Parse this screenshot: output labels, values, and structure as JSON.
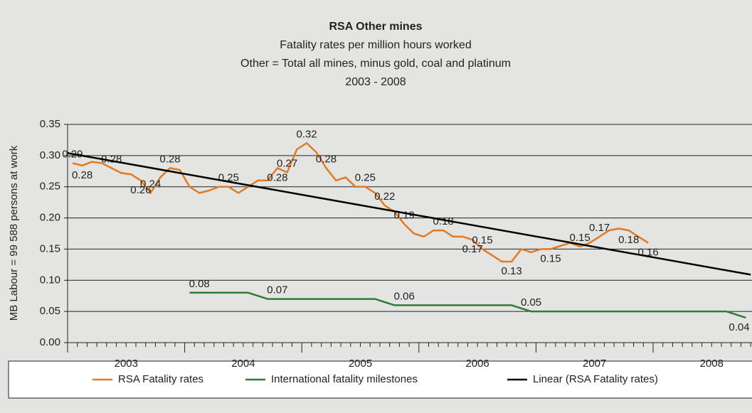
{
  "chart_data": {
    "type": "line",
    "title": "RSA Other mines",
    "subtitle": [
      "Fatality rates per million hours worked",
      "Other = Total all mines, minus gold, coal and platinum",
      "2003 - 2008"
    ],
    "ylabel": "MB Labour = 99 588 persons at work",
    "x_labels": [
      "2003",
      "2004",
      "2005",
      "2006",
      "2007",
      "2008"
    ],
    "ylim": [
      0,
      0.35
    ],
    "yticks": [
      {
        "value": 0,
        "label": "0.00"
      },
      {
        "value": 0.05,
        "label": "0.05"
      },
      {
        "value": 0.1,
        "label": "0.10"
      },
      {
        "value": 0.15,
        "label": "0.15"
      },
      {
        "value": 0.2,
        "label": "0.20"
      },
      {
        "value": 0.25,
        "label": "0.25"
      },
      {
        "value": 0.3,
        "label": "0.30"
      },
      {
        "value": 0.35,
        "label": "0.35"
      }
    ],
    "grid": true,
    "series": [
      {
        "name": "RSA Fatality rates",
        "color": "#e07b24",
        "values": [
          0.288,
          0.284,
          0.29,
          0.288,
          0.28,
          0.272,
          0.27,
          0.26,
          0.24,
          0.265,
          0.28,
          0.277,
          0.25,
          0.24,
          0.244,
          0.25,
          0.25,
          0.24,
          0.25,
          0.26,
          0.26,
          0.28,
          0.273,
          0.31,
          0.32,
          0.305,
          0.28,
          0.26,
          0.265,
          0.25,
          0.25,
          0.24,
          0.22,
          0.21,
          0.19,
          0.175,
          0.17,
          0.18,
          0.18,
          0.17,
          0.17,
          0.165,
          0.15,
          0.14,
          0.13,
          0.13,
          0.15,
          0.145,
          0.15,
          0.15,
          0.155,
          0.16,
          0.154,
          0.16,
          0.17,
          0.18,
          0.183,
          0.18,
          0.17,
          0.16,
          null,
          null,
          null,
          null,
          null,
          null,
          null,
          null,
          null,
          null
        ],
        "value_labels": [
          "0.29",
          "0.28",
          null,
          null,
          "0.28",
          null,
          null,
          "0.26",
          "0.24",
          null,
          "0.28",
          null,
          null,
          null,
          null,
          null,
          "0.25",
          null,
          null,
          null,
          null,
          "0.28",
          "0.27",
          null,
          "0.32",
          null,
          "0.28",
          null,
          null,
          null,
          "0.25",
          null,
          "0.22",
          null,
          "0.19",
          null,
          null,
          null,
          "0.18",
          null,
          null,
          "0.17",
          "0.15",
          null,
          null,
          "0.13",
          null,
          null,
          null,
          "0.15",
          null,
          null,
          "0.15",
          null,
          "0.17",
          null,
          null,
          "0.18",
          null,
          "0.16",
          null,
          null,
          null,
          null,
          null,
          null,
          null,
          null,
          null,
          null
        ]
      },
      {
        "name": "International fatality milestones",
        "color": "#2e7d3a",
        "values": [
          null,
          null,
          null,
          null,
          null,
          null,
          null,
          null,
          null,
          null,
          null,
          null,
          0.08,
          0.08,
          0.08,
          0.08,
          0.08,
          0.08,
          0.08,
          0.075,
          0.07,
          0.07,
          0.07,
          0.07,
          0.07,
          0.07,
          0.07,
          0.07,
          0.07,
          0.07,
          0.07,
          0.07,
          0.065,
          0.06,
          0.06,
          0.06,
          0.06,
          0.06,
          0.06,
          0.06,
          0.06,
          0.06,
          0.06,
          0.06,
          0.06,
          0.06,
          0.055,
          0.05,
          0.05,
          0.05,
          0.05,
          0.05,
          0.05,
          0.05,
          0.05,
          0.05,
          0.05,
          0.05,
          0.05,
          0.05,
          0.05,
          0.05,
          0.05,
          0.05,
          0.05,
          0.05,
          0.05,
          0.05,
          0.045,
          0.04
        ],
        "value_labels": [
          null,
          null,
          null,
          null,
          null,
          null,
          null,
          null,
          null,
          null,
          null,
          null,
          null,
          "0.08",
          null,
          null,
          null,
          null,
          null,
          null,
          null,
          "0.07",
          null,
          null,
          null,
          null,
          null,
          null,
          null,
          null,
          null,
          null,
          null,
          null,
          "0.06",
          null,
          null,
          null,
          null,
          null,
          null,
          null,
          null,
          null,
          null,
          null,
          null,
          "0.05",
          null,
          null,
          null,
          null,
          null,
          null,
          null,
          null,
          null,
          null,
          null,
          null,
          null,
          null,
          null,
          null,
          null,
          null,
          null,
          null,
          null,
          "0.04"
        ]
      },
      {
        "name": "Linear (RSA Fatality rates)",
        "color": "#000000",
        "x": [
          0,
          70
        ],
        "values": [
          0.304,
          0.109
        ]
      }
    ]
  }
}
